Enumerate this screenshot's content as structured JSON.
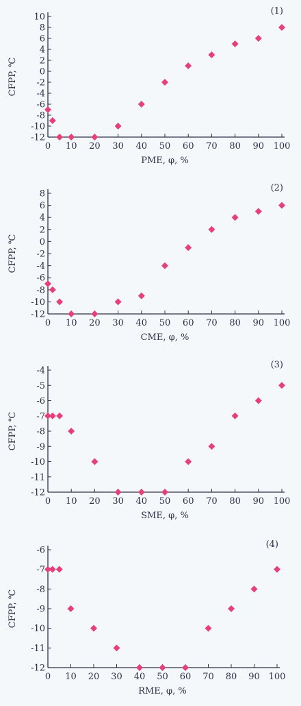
{
  "chart_data": [
    {
      "type": "scatter",
      "tag": "(1)",
      "xlabel": "PME, φ, %",
      "ylabel": "CFPP, ℃",
      "xlim": [
        0,
        100
      ],
      "ylim": [
        -12,
        10
      ],
      "xticks": [
        0,
        10,
        20,
        30,
        40,
        50,
        60,
        70,
        80,
        90,
        100
      ],
      "yticks": [
        -12,
        -10,
        -8,
        -6,
        -4,
        -2,
        0,
        2,
        4,
        6,
        8,
        10
      ],
      "marker_color": "#e6407a",
      "points": [
        [
          0,
          -7
        ],
        [
          2,
          -9
        ],
        [
          5,
          -12
        ],
        [
          10,
          -12
        ],
        [
          20,
          -12
        ],
        [
          30,
          -10
        ],
        [
          40,
          -6
        ],
        [
          50,
          -2
        ],
        [
          60,
          1
        ],
        [
          70,
          3
        ],
        [
          80,
          5
        ],
        [
          90,
          6
        ],
        [
          100,
          8
        ]
      ]
    },
    {
      "type": "scatter",
      "tag": "(2)",
      "xlabel": "CME, φ, %",
      "ylabel": "CFPP, ℃",
      "xlim": [
        0,
        100
      ],
      "ylim": [
        -12,
        8
      ],
      "xticks": [
        0,
        10,
        20,
        30,
        40,
        50,
        60,
        70,
        80,
        90,
        100
      ],
      "yticks": [
        -12,
        -10,
        -8,
        -6,
        -4,
        -2,
        0,
        2,
        4,
        6,
        8
      ],
      "marker_color": "#e6407a",
      "points": [
        [
          0,
          -7
        ],
        [
          2,
          -8
        ],
        [
          5,
          -10
        ],
        [
          10,
          -12
        ],
        [
          20,
          -12
        ],
        [
          30,
          -10
        ],
        [
          40,
          -9
        ],
        [
          50,
          -4
        ],
        [
          60,
          -1
        ],
        [
          70,
          2
        ],
        [
          80,
          4
        ],
        [
          90,
          5
        ],
        [
          100,
          6
        ]
      ]
    },
    {
      "type": "scatter",
      "tag": "(3)",
      "xlabel": "SME, φ, %",
      "ylabel": "CFPP, ℃",
      "xlim": [
        0,
        100
      ],
      "ylim": [
        -12,
        -4
      ],
      "xticks": [
        0,
        10,
        20,
        30,
        40,
        50,
        60,
        70,
        80,
        90,
        100
      ],
      "yticks": [
        -12,
        -11,
        -10,
        -9,
        -8,
        -7,
        -6,
        -5,
        -4
      ],
      "marker_color": "#e6407a",
      "points": [
        [
          0,
          -7
        ],
        [
          2,
          -7
        ],
        [
          5,
          -7
        ],
        [
          10,
          -8
        ],
        [
          20,
          -10
        ],
        [
          30,
          -12
        ],
        [
          40,
          -12
        ],
        [
          50,
          -12
        ],
        [
          60,
          -10
        ],
        [
          70,
          -9
        ],
        [
          80,
          -7
        ],
        [
          90,
          -6
        ],
        [
          100,
          -5
        ]
      ]
    },
    {
      "type": "scatter",
      "tag": "(4)",
      "xlabel": "RME, φ, %",
      "ylabel": "CFPP, ℃",
      "xlim": [
        0,
        100
      ],
      "ylim": [
        -12,
        -6
      ],
      "xticks": [
        0,
        10,
        20,
        30,
        40,
        50,
        60,
        70,
        80,
        90,
        100
      ],
      "yticks": [
        -12,
        -11,
        -10,
        -9,
        -8,
        -7,
        -6
      ],
      "marker_color": "#e6407a",
      "points": [
        [
          0,
          -7
        ],
        [
          2,
          -7
        ],
        [
          5,
          -7
        ],
        [
          10,
          -9
        ],
        [
          20,
          -10
        ],
        [
          30,
          -11
        ],
        [
          40,
          -12
        ],
        [
          50,
          -12
        ],
        [
          60,
          -12
        ],
        [
          70,
          -10
        ],
        [
          80,
          -9
        ],
        [
          90,
          -8
        ],
        [
          100,
          -7
        ]
      ]
    }
  ]
}
